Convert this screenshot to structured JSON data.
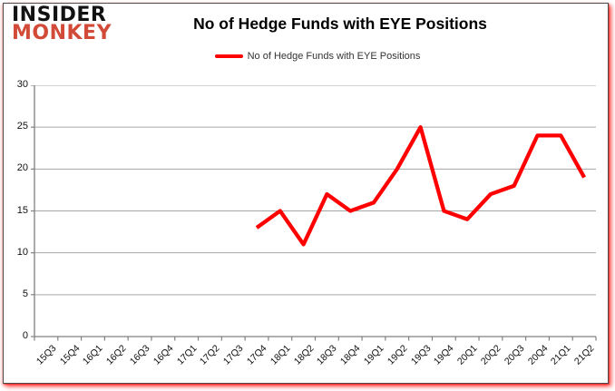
{
  "header": {
    "logo_line1": "INSIDER",
    "logo_line2": "MONKEY",
    "title": "No of Hedge Funds with EYE Positions"
  },
  "legend": {
    "label": "No of Hedge Funds with EYE Positions"
  },
  "chart_data": {
    "type": "line",
    "title": "No of Hedge Funds with EYE Positions",
    "categories": [
      "15Q3",
      "15Q4",
      "16Q1",
      "16Q2",
      "16Q3",
      "16Q4",
      "17Q1",
      "17Q2",
      "17Q3",
      "17Q4",
      "18Q1",
      "18Q2",
      "18Q3",
      "18Q4",
      "19Q1",
      "19Q2",
      "19Q3",
      "19Q4",
      "20Q1",
      "20Q2",
      "20Q3",
      "20Q4",
      "21Q1",
      "21Q2"
    ],
    "series": [
      {
        "name": "No of Hedge Funds with EYE Positions",
        "color": "#ff0000",
        "values": [
          null,
          null,
          null,
          null,
          null,
          null,
          null,
          null,
          null,
          13,
          15,
          11,
          17,
          15,
          16,
          20,
          25,
          15,
          14,
          17,
          18,
          24,
          24,
          19
        ]
      }
    ],
    "xlabel": "",
    "ylabel": "",
    "ylim": [
      0,
      30
    ],
    "yticks": [
      0,
      5,
      10,
      15,
      20,
      25,
      30
    ],
    "grid": true,
    "legend_position": "top-center"
  },
  "colors": {
    "line": "#ff0000",
    "logo_black": "#121212",
    "logo_red": "#d24b38",
    "gridline": "#a6a6a6",
    "axis": "#808080",
    "tick_text": "#111111",
    "legend_text": "#333333",
    "frame_glow": "#ff0000"
  }
}
